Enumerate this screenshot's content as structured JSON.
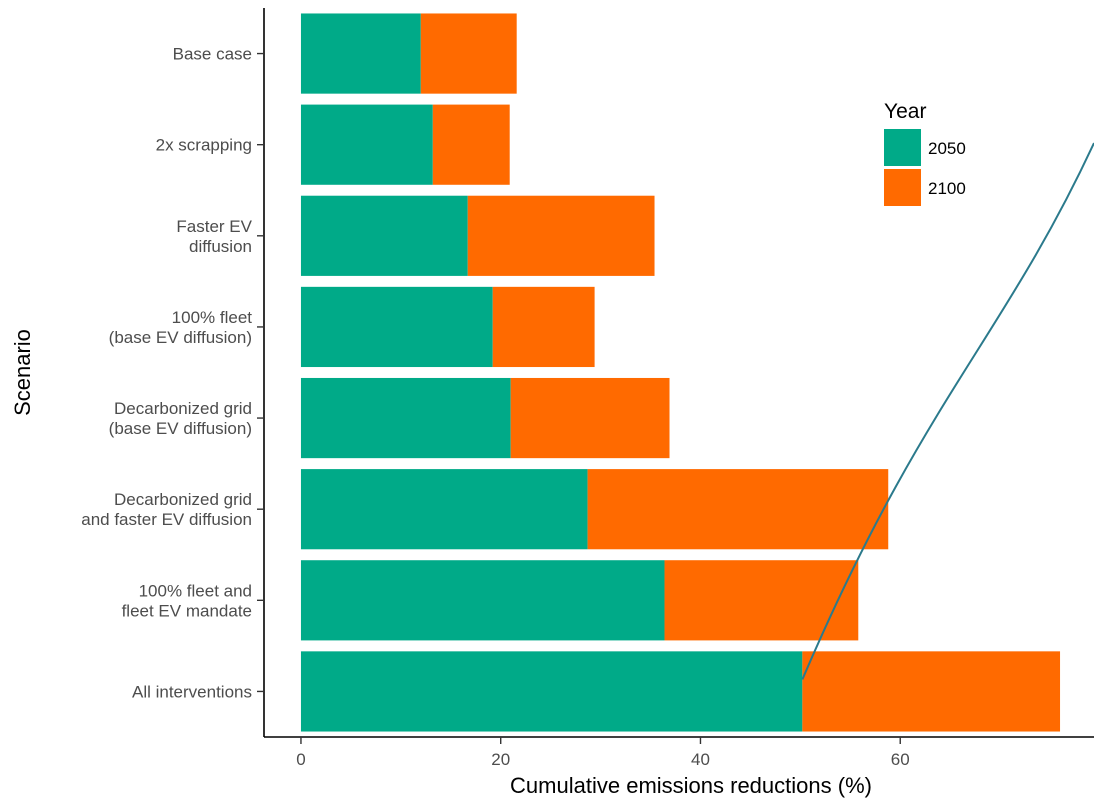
{
  "chart_data": {
    "type": "bar",
    "orientation": "horizontal",
    "stacked": true,
    "categories": [
      "Base case",
      "2x scrapping",
      "Faster EV\ndiffusion",
      "100% fleet\n(base EV diffusion)",
      "Decarbonized grid\n(base EV diffusion)",
      "Decarbonized grid\nand faster EV diffusion",
      "100% fleet and\nfleet EV mandate",
      "All interventions"
    ],
    "series": [
      {
        "name": "2050",
        "color": "#00AA88",
        "values": [
          12,
          13.2,
          16.7,
          19.2,
          21,
          28.7,
          36.4,
          50.2
        ]
      },
      {
        "name": "2100",
        "color": "#FF6A00",
        "values": [
          9.6,
          7.7,
          18.7,
          10.2,
          15.9,
          30.1,
          19.4,
          25.8
        ]
      }
    ],
    "xlabel": "Cumulative emissions reductions (%)",
    "ylabel": "Scenario",
    "xlim": [
      -3.7,
      79.4
    ],
    "xticks": [
      "0",
      "20",
      "40",
      "60"
    ],
    "legend": {
      "title": "Year",
      "position": "top-right"
    },
    "grid": false,
    "overlay_line": {
      "color": "#2B7A8C",
      "from": [
        50.2,
        "All interventions"
      ],
      "to": "top-right"
    }
  }
}
